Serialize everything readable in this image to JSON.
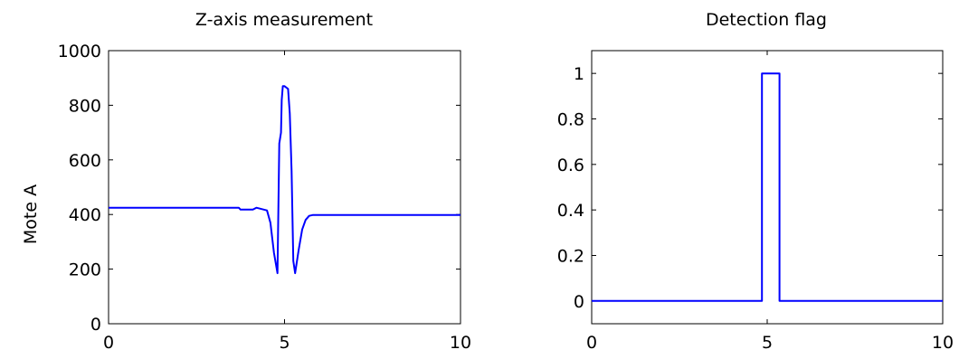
{
  "colors": {
    "line": "#0000ff",
    "axis": "#000000",
    "background": "#ffffff"
  },
  "chart_data": [
    {
      "type": "line",
      "title": "Z-axis measurement",
      "xlabel": "",
      "ylabel": "Mote A",
      "xlim": [
        0,
        10
      ],
      "ylim": [
        0,
        1000
      ],
      "xticks": [
        0,
        5,
        10
      ],
      "yticks": [
        0,
        200,
        400,
        600,
        800,
        1000
      ],
      "grid": false,
      "series": [
        {
          "x": [
            0,
            3.7,
            3.75,
            4.1,
            4.2,
            4.5,
            4.6,
            4.7,
            4.8,
            4.85,
            4.9,
            4.92,
            4.95,
            5.0,
            5.1,
            5.15,
            5.2,
            5.25,
            5.3,
            5.4,
            5.5,
            5.6,
            5.7,
            5.8,
            6.0,
            8.0,
            10
          ],
          "y": [
            425,
            425,
            418,
            418,
            425,
            415,
            370,
            260,
            185,
            660,
            700,
            820,
            870,
            870,
            860,
            770,
            560,
            230,
            185,
            270,
            345,
            380,
            395,
            398,
            398,
            398,
            398
          ]
        }
      ]
    },
    {
      "type": "line",
      "title": "Detection flag",
      "xlabel": "",
      "ylabel": "",
      "xlim": [
        0,
        10
      ],
      "ylim": [
        -0.1,
        1.1
      ],
      "xticks": [
        0,
        5,
        10
      ],
      "yticks": [
        0,
        0.2,
        0.4,
        0.6,
        0.8,
        1
      ],
      "ytick_labels": [
        "0",
        "0.2",
        "0.4",
        "0.6",
        "0.8",
        "1"
      ],
      "grid": false,
      "series": [
        {
          "x": [
            0,
            4.85,
            4.85,
            5.35,
            5.35,
            10
          ],
          "y": [
            0,
            0,
            1,
            1,
            0,
            0
          ]
        }
      ]
    }
  ]
}
